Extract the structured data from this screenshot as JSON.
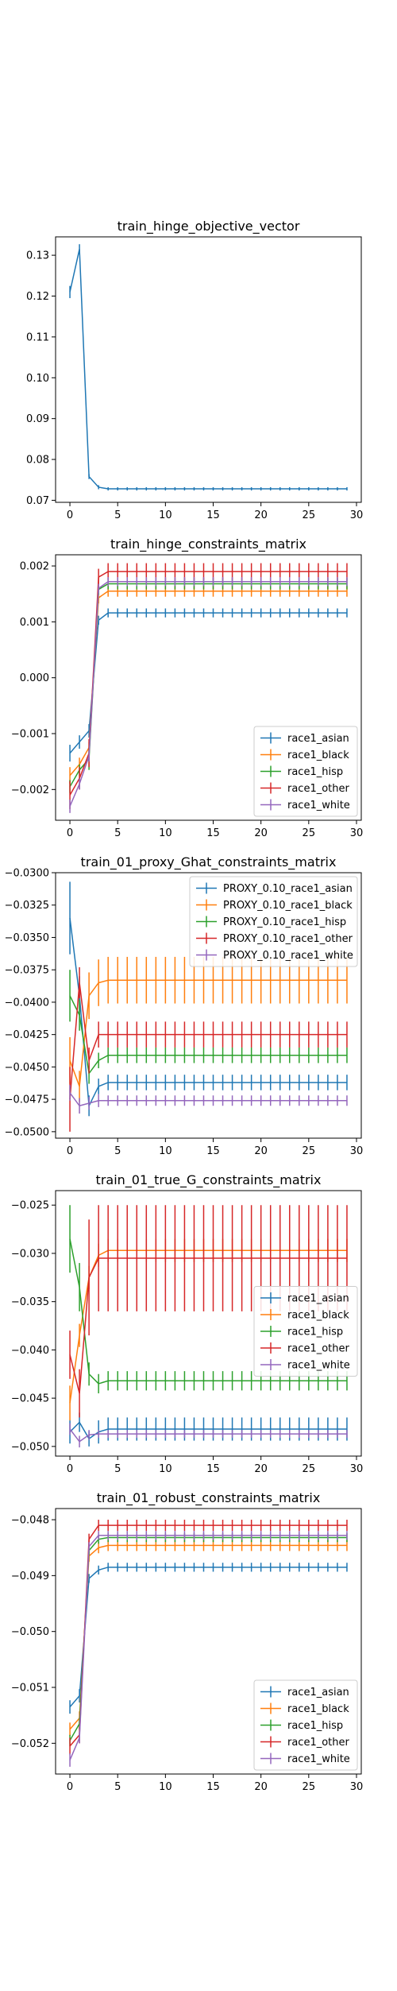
{
  "colors": [
    "#1f77b4",
    "#ff7f0e",
    "#2ca02c",
    "#d62728",
    "#9467bd"
  ],
  "chart_data": [
    {
      "type": "line",
      "title": "train_hinge_objective_vector",
      "xlabel": "",
      "ylabel": "",
      "xlim": [
        -1.5,
        30.5
      ],
      "ylim": [
        0.0695,
        0.1345
      ],
      "xticks": [
        0,
        5,
        10,
        15,
        20,
        25,
        30
      ],
      "yticks": [
        0.07,
        0.08,
        0.09,
        0.1,
        0.11,
        0.12,
        0.13
      ],
      "ytick_labels": [
        "0.07",
        "0.08",
        "0.09",
        "0.10",
        "0.11",
        "0.12",
        "0.13"
      ],
      "legend": "none",
      "series": [
        {
          "name": "",
          "start": [
            0.121,
            0.1315,
            0.0758,
            0.0732
          ],
          "end": 0.0728,
          "err_start": [
            0.0015,
            0.0012,
            0.0006,
            0.0005
          ],
          "err": 0.0004
        }
      ]
    },
    {
      "type": "line",
      "title": "train_hinge_constraints_matrix",
      "xlabel": "",
      "ylabel": "",
      "xlim": [
        -1.5,
        30.5
      ],
      "ylim": [
        -0.00255,
        0.0022
      ],
      "xticks": [
        0,
        5,
        10,
        15,
        20,
        25,
        30
      ],
      "yticks": [
        -0.002,
        -0.001,
        0.0,
        0.001,
        0.002
      ],
      "ytick_labels": [
        "−0.002",
        "−0.001",
        "0.000",
        "0.001",
        "0.002"
      ],
      "legend": "lower right",
      "series": [
        {
          "name": "race1_asian",
          "start": [
            -0.00135,
            -0.00115,
            -0.00095,
            0.00103
          ],
          "end": 0.00116,
          "err_start": [
            0.00015,
            0.00012,
            0.00012,
            8e-05
          ],
          "err": 8e-05
        },
        {
          "name": "race1_black",
          "start": [
            -0.00175,
            -0.00155,
            -0.00125,
            0.00143
          ],
          "end": 0.00155,
          "err_start": [
            0.00015,
            0.00012,
            0.0001,
            0.0001
          ],
          "err": 0.0001
        },
        {
          "name": "race1_hisp",
          "start": [
            -0.00195,
            -0.00165,
            -0.00145,
            0.00158
          ],
          "end": 0.00168,
          "err_start": [
            0.00012,
            0.0001,
            0.0002,
            0.0001
          ],
          "err": 0.0001
        },
        {
          "name": "race1_other",
          "start": [
            -0.0021,
            -0.0018,
            -0.00135,
            0.0018
          ],
          "end": 0.0019,
          "err_start": [
            0.00025,
            0.0002,
            0.00025,
            0.00015
          ],
          "err": 0.00015
        },
        {
          "name": "race1_white",
          "start": [
            -0.0023,
            -0.0019,
            -0.0014,
            0.0016
          ],
          "end": 0.00172,
          "err_start": [
            0.00012,
            0.0001,
            0.0001,
            8e-05
          ],
          "err": 8e-05
        }
      ]
    },
    {
      "type": "line",
      "title": "train_01_proxy_Ghat_constraints_matrix",
      "xlabel": "",
      "ylabel": "",
      "xlim": [
        -1.5,
        30.5
      ],
      "ylim": [
        -0.0505,
        -0.03
      ],
      "xticks": [
        0,
        5,
        10,
        15,
        20,
        25,
        30
      ],
      "yticks": [
        -0.05,
        -0.0475,
        -0.045,
        -0.0425,
        -0.04,
        -0.0375,
        -0.035,
        -0.0325,
        -0.03
      ],
      "ytick_labels": [
        "−0.0500",
        "−0.0475",
        "−0.0450",
        "−0.0425",
        "−0.0400",
        "−0.0375",
        "−0.0350",
        "−0.0325",
        "−0.0300"
      ],
      "legend": "upper right",
      "series": [
        {
          "name": "PROXY_0.10_race1_asian",
          "start": [
            -0.0335,
            -0.0395,
            -0.048,
            -0.0465
          ],
          "end": -0.0462,
          "err_start": [
            0.0028,
            0.0015,
            0.0008,
            0.0006
          ],
          "err": 0.0006
        },
        {
          "name": "PROXY_0.10_race1_black",
          "start": [
            -0.0445,
            -0.0465,
            -0.0395,
            -0.0385
          ],
          "end": -0.0383,
          "err_start": [
            0.0018,
            0.0012,
            0.0018,
            0.0018
          ],
          "err": 0.0018
        },
        {
          "name": "PROXY_0.10_race1_hisp",
          "start": [
            -0.0395,
            -0.041,
            -0.0455,
            -0.0445
          ],
          "end": -0.0441,
          "err_start": [
            0.002,
            0.0012,
            0.0008,
            0.0006
          ],
          "err": 0.0006
        },
        {
          "name": "PROXY_0.10_race1_other",
          "start": [
            -0.0475,
            -0.0385,
            -0.0445,
            -0.0425
          ],
          "end": -0.0425,
          "err_start": [
            0.0025,
            0.0012,
            0.001,
            0.001
          ],
          "err": 0.001
        },
        {
          "name": "PROXY_0.10_race1_white",
          "start": [
            -0.047,
            -0.048,
            -0.0478,
            -0.0476
          ],
          "end": -0.0476,
          "err_start": [
            0.0006,
            0.0006,
            0.0005,
            0.0005
          ],
          "err": 0.0004
        }
      ]
    },
    {
      "type": "line",
      "title": "train_01_true_G_constraints_matrix",
      "xlabel": "",
      "ylabel": "",
      "xlim": [
        -1.5,
        30.5
      ],
      "ylim": [
        -0.051,
        -0.0235
      ],
      "xticks": [
        0,
        5,
        10,
        15,
        20,
        25,
        30
      ],
      "yticks": [
        -0.05,
        -0.045,
        -0.04,
        -0.035,
        -0.03,
        -0.025
      ],
      "ytick_labels": [
        "−0.050",
        "−0.045",
        "−0.040",
        "−0.035",
        "−0.030",
        "−0.025"
      ],
      "legend": "center right",
      "series": [
        {
          "name": "race1_asian",
          "start": [
            -0.0485,
            -0.0475,
            -0.0492,
            -0.0485
          ],
          "end": -0.0482,
          "err_start": [
            0.0012,
            0.001,
            0.0008,
            0.0012
          ],
          "err": 0.0012
        },
        {
          "name": "race1_black",
          "start": [
            -0.0455,
            -0.0385,
            -0.0325,
            -0.0302
          ],
          "end": -0.0297,
          "err_start": [
            0.0018,
            0.0012,
            0.0012,
            0.0012
          ],
          "err": 0.0012
        },
        {
          "name": "race1_hisp",
          "start": [
            -0.0285,
            -0.0335,
            -0.0425,
            -0.0435
          ],
          "end": -0.0432,
          "err_start": [
            0.0035,
            0.0025,
            0.0012,
            0.001
          ],
          "err": 0.001
        },
        {
          "name": "race1_other",
          "start": [
            -0.0405,
            -0.0445,
            -0.0325,
            -0.0305
          ],
          "end": -0.0305,
          "err_start": [
            0.0025,
            0.0025,
            0.006,
            0.0055
          ],
          "err": 0.0055
        },
        {
          "name": "race1_white",
          "start": [
            -0.0482,
            -0.0495,
            -0.0488,
            -0.0487
          ],
          "end": -0.0487,
          "err_start": [
            0.0006,
            0.0006,
            0.0005,
            0.0004
          ],
          "err": 0.0004
        }
      ]
    },
    {
      "type": "line",
      "title": "train_01_robust_constraints_matrix",
      "xlabel": "",
      "ylabel": "",
      "xlim": [
        -1.5,
        30.5
      ],
      "ylim": [
        -0.05255,
        -0.0478
      ],
      "xticks": [
        0,
        5,
        10,
        15,
        20,
        25,
        30
      ],
      "yticks": [
        -0.052,
        -0.051,
        -0.05,
        -0.049,
        -0.048
      ],
      "ytick_labels": [
        "−0.052",
        "−0.051",
        "−0.050",
        "−0.049",
        "−0.048"
      ],
      "legend": "lower right",
      "series": [
        {
          "name": "race1_asian",
          "start": [
            -0.05135,
            -0.05115,
            -0.04905,
            -0.0489
          ],
          "end": -0.04885,
          "err_start": [
            0.00012,
            0.00012,
            8e-05,
            8e-05
          ],
          "err": 8e-05
        },
        {
          "name": "race1_black",
          "start": [
            -0.05175,
            -0.05155,
            -0.04865,
            -0.0485
          ],
          "end": -0.04846,
          "err_start": [
            0.00012,
            0.00012,
            0.0001,
            0.0001
          ],
          "err": 0.0001
        },
        {
          "name": "race1_hisp",
          "start": [
            -0.05195,
            -0.05165,
            -0.04855,
            -0.04835
          ],
          "end": -0.04832,
          "err_start": [
            0.0001,
            0.0001,
            8e-05,
            8e-05
          ],
          "err": 8e-05
        },
        {
          "name": "race1_other",
          "start": [
            -0.05205,
            -0.05185,
            -0.04835,
            -0.0481
          ],
          "end": -0.0481,
          "err_start": [
            0.00015,
            0.00015,
            0.0001,
            0.0001
          ],
          "err": 0.0001
        },
        {
          "name": "race1_white",
          "start": [
            -0.0523,
            -0.0519,
            -0.04848,
            -0.04828
          ],
          "end": -0.04828,
          "err_start": [
            0.00012,
            0.0001,
            8e-05,
            8e-05
          ],
          "err": 8e-05
        }
      ]
    }
  ]
}
